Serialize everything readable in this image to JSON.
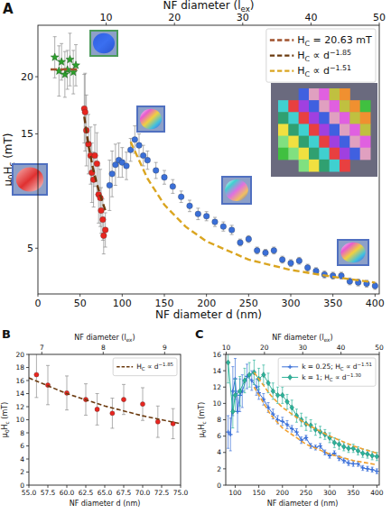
{
  "chart_data": [
    {
      "type": "scatter",
      "title": "A",
      "x_label": "NF diameter d (nm)",
      "x2_label": "NF diameter (lex)",
      "y_label": "μ0Hc (mT)",
      "xlim": [
        0,
        405
      ],
      "xticks": [
        0,
        50,
        100,
        150,
        200,
        250,
        300,
        350,
        400
      ],
      "x2lim": [
        0,
        50
      ],
      "x2ticks": [
        10,
        20,
        30,
        40,
        50
      ],
      "ylim": [
        1,
        24.5
      ],
      "yticks": [
        5,
        10,
        15,
        20
      ],
      "grid": false,
      "legend": "upper right",
      "series": [
        {
          "type": "scatter",
          "color": "#2ca02c",
          "marker": "star",
          "x": [
            20,
            25,
            28,
            32,
            35,
            38,
            42,
            45
          ],
          "values": [
            21.7,
            20.5,
            21.3,
            20.2,
            20.6,
            21.5,
            20.4,
            21.0
          ],
          "errors": [
            1.8,
            2.2,
            1.6,
            2.0,
            1.7,
            2.3,
            1.9,
            1.8
          ]
        },
        {
          "type": "scatter",
          "color": "#e8251f",
          "marker": "circle",
          "x": [
            55,
            56,
            57.5,
            60,
            62.5,
            64,
            66,
            67.5,
            70,
            72,
            74,
            75,
            77,
            78,
            80
          ],
          "values": [
            17.2,
            16.9,
            15.3,
            14.1,
            13.1,
            11.6,
            11.0,
            13.1,
            12.4,
            9.7,
            9.4,
            8.3,
            7.5,
            6.1,
            6.6
          ],
          "errors": [
            3.0,
            3.4,
            3.1,
            2.6,
            2.5,
            2.6,
            2.4,
            2.7,
            2.7,
            2.5,
            2.5,
            2.0,
            1.8,
            1.6,
            1.5
          ]
        },
        {
          "type": "scatter",
          "color": "#3a6fd8",
          "marker": "circle",
          "x": [
            85,
            88,
            92,
            96,
            100,
            105,
            110,
            115,
            120,
            125,
            130,
            140,
            150,
            160,
            170,
            180,
            190,
            200,
            210,
            220,
            230,
            240,
            250,
            260,
            270,
            280,
            290,
            300,
            310,
            320,
            330,
            340,
            350,
            360,
            370,
            380,
            390,
            400
          ],
          "values": [
            10.5,
            11.5,
            12.3,
            12.7,
            12.5,
            12.2,
            13.6,
            14.5,
            14.0,
            13.1,
            12.7,
            11.8,
            11.2,
            10.4,
            9.5,
            8.7,
            8.0,
            7.8,
            7.3,
            6.9,
            6.6,
            5.5,
            5.8,
            4.8,
            4.6,
            4.8,
            4.0,
            3.7,
            3.9,
            3.3,
            3.0,
            2.7,
            2.6,
            2.6,
            2.1,
            2.0,
            1.9,
            1.7
          ],
          "errors": [
            2.2,
            2.0,
            1.8,
            1.5,
            1.3,
            1.2,
            1.0,
            1.2,
            1.0,
            0.9,
            0.8,
            0.7,
            0.6,
            0.6,
            0.5,
            0.5,
            0.5,
            0.4,
            0.4,
            0.4,
            0.4,
            0.3,
            0.3,
            0.3,
            0.3,
            0.3,
            0.3,
            0.3,
            0.3,
            0.3,
            0.3,
            0.3,
            0.3,
            0.3,
            0.3,
            0.3,
            0.3,
            0.3
          ]
        },
        {
          "name": "HC = 20.63 mT",
          "type": "line",
          "color": "#a0522d",
          "line_style": "dashed",
          "x": [
            15,
            50
          ],
          "values": [
            20.63,
            20.63
          ]
        },
        {
          "name": "HC ∝ d−1.85",
          "type": "line",
          "color": "#6b3a0f",
          "line_style": "dashed",
          "x": [
            55,
            60,
            65,
            70,
            75,
            80
          ],
          "values": [
            16.5,
            14.0,
            12.1,
            10.6,
            9.4,
            8.3
          ]
        },
        {
          "name": "HC ∝ d−1.51",
          "type": "line",
          "color": "#daa520",
          "line_style": "dashed",
          "x": [
            110,
            130,
            150,
            175,
            200,
            250,
            300,
            350,
            400
          ],
          "values": [
            14.3,
            11.1,
            8.8,
            6.9,
            5.6,
            4.0,
            3.1,
            2.5,
            2.0
          ]
        }
      ]
    },
    {
      "type": "scatter",
      "title": "B",
      "x_label": "NF diameter d (nm)",
      "x2_label": "NF diameter (lex)",
      "y_label": "μ0Hc (mT)",
      "xlim": [
        55,
        75
      ],
      "xticks": [
        {
          "value": 55,
          "label": "55.0"
        },
        {
          "value": 57.5,
          "label": "57.5"
        },
        {
          "value": 60,
          "label": "60.0"
        },
        {
          "value": 62.5,
          "label": "62.5"
        },
        {
          "value": 65,
          "label": "65.0"
        },
        {
          "value": 67.5,
          "label": "67.5"
        },
        {
          "value": 70,
          "label": "70.0"
        },
        {
          "value": 72.5,
          "label": "72.5"
        },
        {
          "value": 75,
          "label": "75.0"
        }
      ],
      "x2lim": [
        6.79,
        9.26
      ],
      "x2ticks": [
        7,
        8,
        9
      ],
      "ylim": [
        0,
        20
      ],
      "yticks": [
        0,
        2,
        4,
        6,
        8,
        10,
        12,
        14,
        16,
        18,
        20
      ],
      "grid": false,
      "legend": "upper right",
      "series": [
        {
          "type": "scatter",
          "color": "#e8251f",
          "marker": "circle",
          "x": [
            56,
            57.5,
            60,
            62.5,
            64,
            66,
            67.5,
            70,
            72,
            74
          ],
          "values": [
            16.9,
            15.3,
            14.1,
            13.1,
            11.6,
            11.0,
            13.1,
            12.4,
            9.7,
            9.4
          ],
          "errors": [
            3.5,
            3.0,
            2.6,
            2.4,
            2.4,
            2.3,
            2.3,
            2.5,
            2.4,
            2.3
          ]
        },
        {
          "name": "HC ∝ d−1.85",
          "type": "line",
          "color": "#6b3a0f",
          "line_style": "dashed",
          "x": [
            55,
            60,
            65,
            70,
            75
          ],
          "values": [
            16.4,
            14.0,
            12.1,
            10.6,
            9.4
          ]
        }
      ]
    },
    {
      "type": "line",
      "title": "C",
      "x_label": "NF diameter d (nm)",
      "x2_label": "NF diameter (lex)",
      "y_label": "μ0Hc (mT)",
      "xlim": [
        80,
        405
      ],
      "xticks": [
        100,
        150,
        200,
        250,
        300,
        350,
        400
      ],
      "x2lim": [
        9.88,
        50
      ],
      "x2ticks": [
        10,
        20,
        30,
        40,
        50
      ],
      "ylim": [
        0,
        16
      ],
      "yticks": [
        0,
        2,
        4,
        6,
        8,
        10,
        12,
        14,
        16
      ],
      "grid": false,
      "legend": "upper right",
      "series": [
        {
          "name": "k = 0.25; HC ∝ d−1.51",
          "type": "line",
          "color": "#3a6fd8",
          "marker": "plus",
          "x": [
            85,
            90,
            95,
            100,
            105,
            110,
            115,
            125,
            135,
            145,
            150,
            160,
            170,
            180,
            190,
            200,
            210,
            220,
            230,
            240,
            250,
            260,
            270,
            280,
            290,
            300,
            310,
            320,
            330,
            340,
            350,
            360,
            370,
            380,
            390,
            400
          ],
          "values": [
            6.5,
            6.2,
            11.5,
            13.0,
            9.0,
            11.0,
            11.5,
            13.3,
            12.8,
            12.0,
            11.3,
            10.5,
            9.5,
            8.7,
            8.0,
            7.8,
            7.4,
            6.9,
            6.5,
            5.5,
            5.8,
            4.8,
            4.6,
            4.8,
            4.0,
            3.6,
            3.9,
            3.3,
            3.0,
            2.7,
            2.6,
            2.6,
            2.1,
            2.0,
            1.9,
            1.7
          ],
          "errors": [
            2.0,
            2.0,
            3.0,
            2.5,
            2.5,
            2.0,
            2.0,
            1.5,
            1.2,
            1.0,
            0.8,
            0.7,
            0.6,
            0.6,
            0.5,
            0.5,
            0.5,
            0.4,
            0.4,
            0.4,
            0.3,
            0.3,
            0.3,
            0.3,
            0.3,
            0.3,
            0.3,
            0.3,
            0.3,
            0.3,
            0.3,
            0.3,
            0.3,
            0.3,
            0.3,
            0.3
          ]
        },
        {
          "name": "k = 1; HC ∝ d−1.30",
          "type": "line",
          "color": "#2bb39a",
          "marker": "diamond",
          "x": [
            85,
            95,
            100,
            110,
            120,
            130,
            140,
            150,
            160,
            170,
            180,
            190,
            200,
            210,
            220,
            230,
            240,
            250,
            260,
            270,
            280,
            290,
            300,
            310,
            320,
            330,
            340,
            350,
            360,
            370,
            380,
            390,
            400
          ],
          "values": [
            15.0,
            9.0,
            11.0,
            11.5,
            12.8,
            13.5,
            13.8,
            13.0,
            13.5,
            12.5,
            11.5,
            11.0,
            11.0,
            10.2,
            9.5,
            8.5,
            8.0,
            7.5,
            7.3,
            6.8,
            6.5,
            6.2,
            5.8,
            5.2,
            5.0,
            4.7,
            4.5,
            4.5,
            4.2,
            3.9,
            3.8,
            3.6,
            3.5
          ],
          "errors": [
            2.5,
            2.0,
            2.0,
            1.8,
            1.5,
            1.5,
            1.5,
            1.3,
            1.2,
            1.2,
            1.0,
            1.0,
            1.0,
            0.9,
            0.9,
            0.8,
            0.8,
            0.8,
            0.7,
            0.7,
            0.7,
            0.6,
            0.6,
            0.6,
            0.6,
            0.5,
            0.5,
            0.5,
            0.5,
            0.5,
            0.5,
            0.5,
            0.5
          ]
        },
        {
          "type": "line",
          "color": "#f0a030",
          "line_style": "dashed",
          "x": [
            140,
            175,
            200,
            250,
            300,
            350,
            400
          ],
          "values": [
            12.0,
            8.6,
            7.0,
            5.0,
            3.8,
            3.0,
            2.5
          ]
        },
        {
          "type": "line",
          "color": "#f0a030",
          "line_style": "dashed",
          "x": [
            140,
            175,
            200,
            250,
            300,
            350,
            400
          ],
          "values": [
            13.8,
            11.0,
            9.5,
            7.5,
            6.0,
            4.8,
            3.9
          ]
        }
      ]
    }
  ]
}
